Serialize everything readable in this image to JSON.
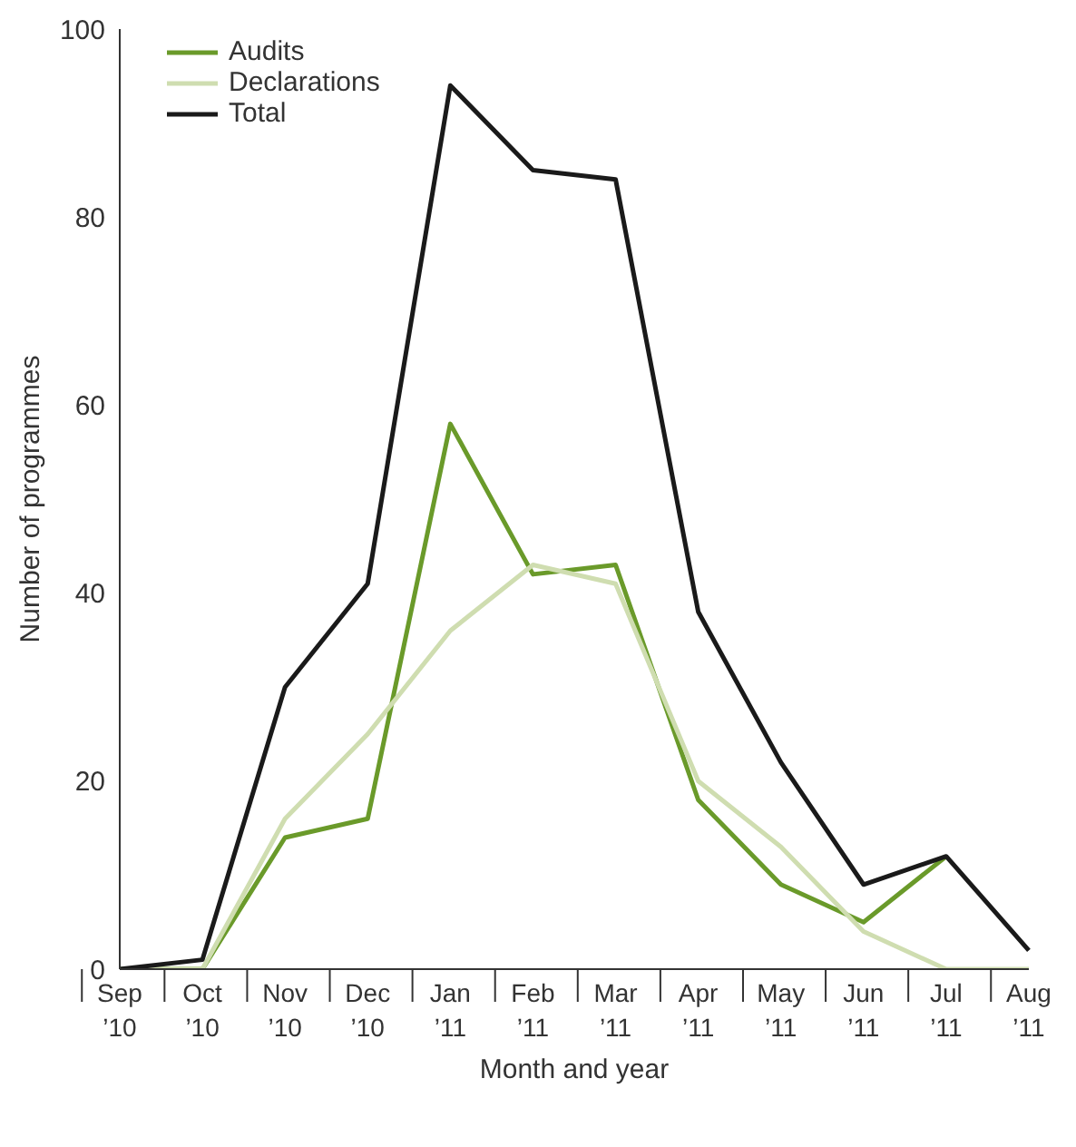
{
  "chart_data": {
    "type": "line",
    "xlabel": "Month and year",
    "ylabel": "Number of programmes",
    "categories": [
      "Sep ’10",
      "Oct ’10",
      "Nov ’10",
      "Dec ’10",
      "Jan ’11",
      "Feb ’11",
      "Mar ’11",
      "Apr ’11",
      "May ’11",
      "Jun ’11",
      "Jul ’11",
      "Aug ’11"
    ],
    "series": [
      {
        "name": "Audits",
        "color": "#6a9a2a",
        "values": [
          0,
          0,
          14,
          16,
          58,
          42,
          43,
          18,
          9,
          5,
          12,
          null
        ]
      },
      {
        "name": "Declarations",
        "color": "#cfddb0",
        "values": [
          0,
          0,
          16,
          25,
          36,
          43,
          41,
          20,
          13,
          4,
          0,
          0
        ]
      },
      {
        "name": "Total",
        "color": "#1a1a1a",
        "values": [
          0,
          1,
          30,
          41,
          94,
          85,
          84,
          38,
          22,
          9,
          12,
          2
        ]
      }
    ],
    "ylim": [
      0,
      100
    ],
    "yticks": [
      0,
      20,
      40,
      60,
      80,
      100
    ],
    "grid": false,
    "legend": "top left",
    "marker": "none",
    "line_style": "solid"
  }
}
